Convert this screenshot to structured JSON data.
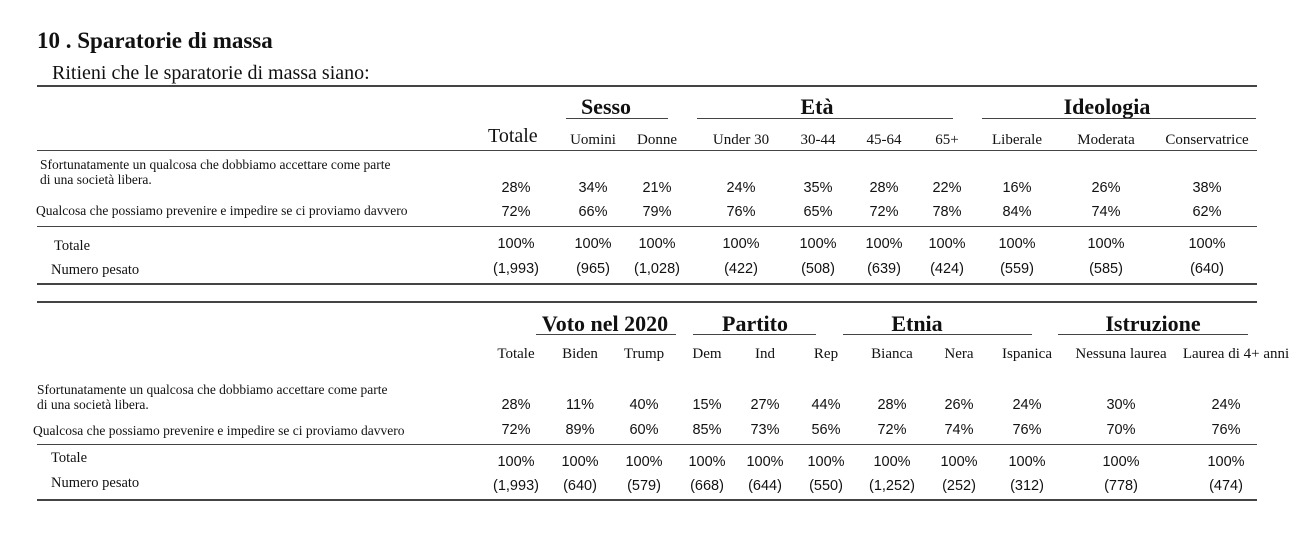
{
  "title": "10 . Sparatorie di massa",
  "question": "Ritieni che le sparatorie di massa siano:",
  "rows": {
    "r1_line1": "Sfortunatamente un qualcosa che dobbiamo accettare come parte",
    "r1_line2": "di una società libera.",
    "r2": "Qualcosa che possiamo prevenire e impedire se ci proviamo davvero",
    "total": "Totale",
    "weighted": "Numero pesato"
  },
  "panel1": {
    "total_header": "Totale",
    "groups": [
      "Sesso",
      "Età",
      "Ideologia"
    ],
    "columns": [
      "Uomini",
      "Donne",
      "Under 30",
      "30-44",
      "45-64",
      "65+",
      "Liberale",
      "Moderata",
      "Conservatrice"
    ],
    "r1": [
      "28%",
      "34%",
      "21%",
      "24%",
      "35%",
      "28%",
      "22%",
      "16%",
      "26%",
      "38%"
    ],
    "r2": [
      "72%",
      "66%",
      "79%",
      "76%",
      "65%",
      "72%",
      "78%",
      "84%",
      "74%",
      "62%"
    ],
    "total": [
      "100%",
      "100%",
      "100%",
      "100%",
      "100%",
      "100%",
      "100%",
      "100%",
      "100%",
      "100%"
    ],
    "weighted": [
      "(1,993)",
      "(965)",
      "(1,028)",
      "(422)",
      "(508)",
      "(639)",
      "(424)",
      "(559)",
      "(585)",
      "(640)"
    ]
  },
  "panel2": {
    "groups": [
      "Voto nel 2020",
      "Partito",
      "Etnia",
      "Istruzione"
    ],
    "columns": [
      "Totale",
      "Biden",
      "Trump",
      "Dem",
      "Ind",
      "Rep",
      "Bianca",
      "Nera",
      "Ispanica",
      "Nessuna laurea",
      "Laurea di 4+ anni"
    ],
    "r1": [
      "28%",
      "11%",
      "40%",
      "15%",
      "27%",
      "44%",
      "28%",
      "26%",
      "24%",
      "30%",
      "24%"
    ],
    "r2": [
      "72%",
      "89%",
      "60%",
      "85%",
      "73%",
      "56%",
      "72%",
      "74%",
      "76%",
      "70%",
      "76%"
    ],
    "total": [
      "100%",
      "100%",
      "100%",
      "100%",
      "100%",
      "100%",
      "100%",
      "100%",
      "100%",
      "100%",
      "100%"
    ],
    "weighted": [
      "(1,993)",
      "(640)",
      "(579)",
      "(668)",
      "(644)",
      "(550)",
      "(1,252)",
      "(252)",
      "(312)",
      "(778)",
      "(474)"
    ]
  }
}
